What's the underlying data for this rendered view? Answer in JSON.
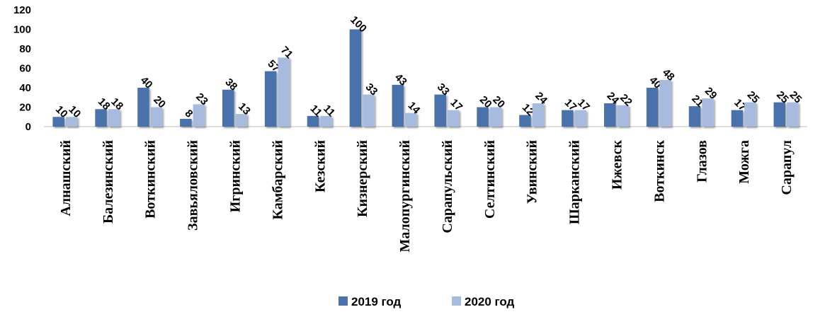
{
  "chart_data": {
    "type": "bar",
    "categories": [
      "Алнашский",
      "Балезинский",
      "Воткинский",
      "Завьяловский",
      "Игринский",
      "Камбарский",
      "Кезский",
      "Кизнерский",
      "Малопургинский",
      "Сарапульский",
      "Селтинский",
      "Увинский",
      "Шарканский",
      "Ижевск",
      "Воткинск",
      "Глазов",
      "Можга",
      "Сарапул"
    ],
    "series": [
      {
        "name": "2019 год",
        "values": [
          10,
          18,
          40,
          8,
          38,
          57,
          11,
          100,
          43,
          33,
          20,
          12,
          17,
          24,
          40,
          21,
          17,
          25
        ]
      },
      {
        "name": "2020 год",
        "values": [
          10,
          18,
          20,
          23,
          13,
          71,
          11,
          33,
          14,
          17,
          20,
          24,
          17,
          22,
          48,
          29,
          25,
          25
        ]
      }
    ],
    "ylim": [
      0,
      120
    ],
    "yticks": [
      "0",
      "20",
      "40",
      "60",
      "80",
      "100",
      "120"
    ],
    "grid": false,
    "legend_position": "bottom",
    "colors": {
      "2019 год": "#4a72ad",
      "2020 год": "#a7bbdf"
    }
  }
}
